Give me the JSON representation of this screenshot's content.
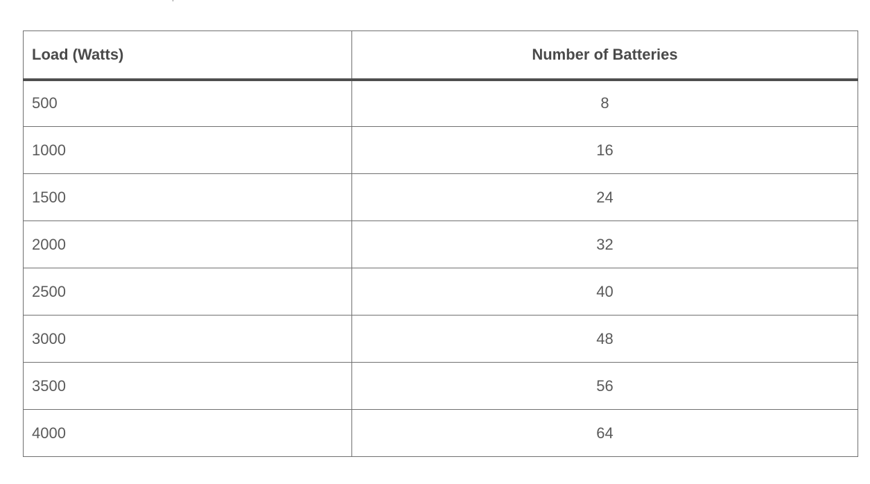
{
  "table": {
    "headers": [
      "Load (Watts)",
      "Number of Batteries"
    ],
    "rows": [
      [
        "500",
        "8"
      ],
      [
        "1000",
        "16"
      ],
      [
        "1500",
        "24"
      ],
      [
        "2000",
        "32"
      ],
      [
        "2500",
        "40"
      ],
      [
        "3000",
        "48"
      ],
      [
        "3500",
        "56"
      ],
      [
        "4000",
        "64"
      ]
    ]
  }
}
